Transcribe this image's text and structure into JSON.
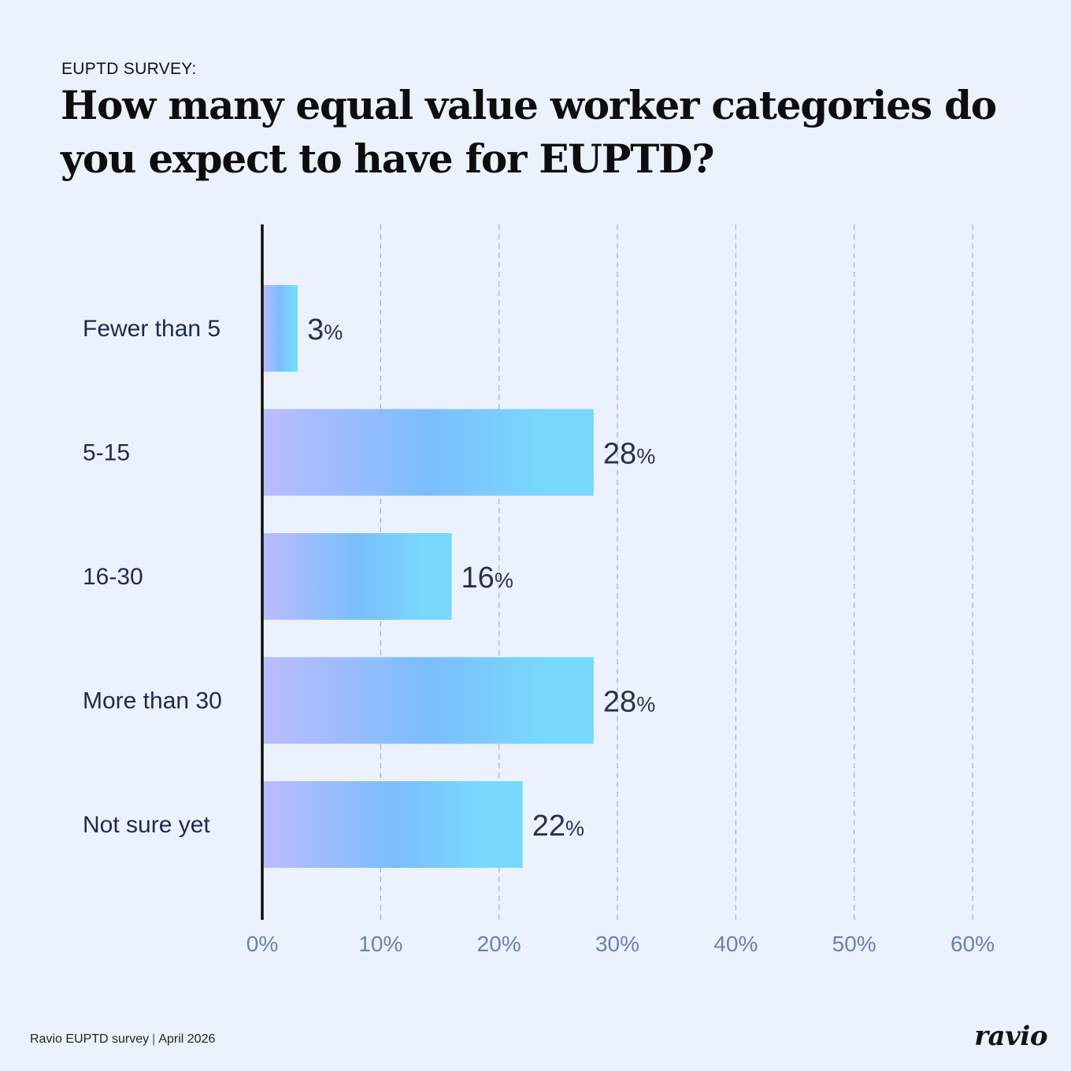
{
  "header": {
    "eyebrow": "EUPTD SURVEY:",
    "title": "How many equal value worker categories do you expect to have for EUPTD?"
  },
  "chart_data": {
    "type": "bar",
    "orientation": "horizontal",
    "categories": [
      "Fewer than 5",
      "5-15",
      "16-30",
      "More than 30",
      "Not sure yet"
    ],
    "values": [
      3,
      28,
      16,
      28,
      22
    ],
    "data_labels": [
      "3",
      "28",
      "16",
      "28",
      "22"
    ],
    "value_suffix": "%",
    "xlim": [
      0,
      60
    ],
    "xticks": [
      0,
      10,
      20,
      30,
      40,
      50,
      60
    ],
    "xtick_labels": [
      "0%",
      "10%",
      "20%",
      "30%",
      "40%",
      "50%",
      "60%"
    ],
    "grid": "vertical dashed",
    "colors": {
      "bar_gradient": [
        "#bcbcfd",
        "#7bbdfd",
        "#79d8fd"
      ],
      "axis": "#0f0f0f",
      "grid": "#a9b6cc",
      "tick_label": "#6a7fb5",
      "category_label": "#1d2a4c",
      "value_label": "#26314f"
    }
  },
  "footer": {
    "source": "Ravio EUPTD survey",
    "date": "April 2026",
    "logo": "ravio"
  }
}
